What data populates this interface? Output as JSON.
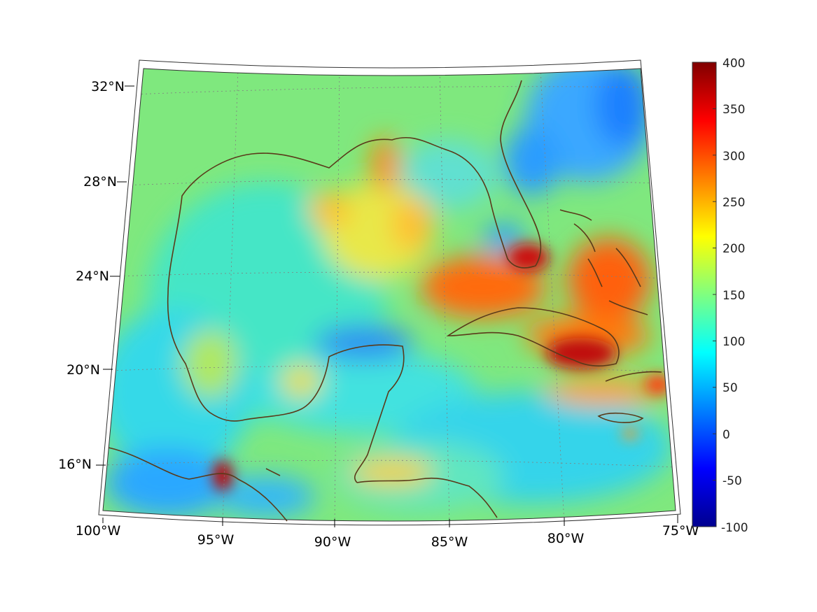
{
  "map": {
    "lat_labels": [
      "32°N",
      "28°N",
      "24°N",
      "20°N",
      "16°N"
    ],
    "lon_labels": [
      "100°W",
      "95°W",
      "90°W",
      "85°W",
      "80°W",
      "75°W"
    ],
    "colorbar": {
      "ticks": [
        "400",
        "350",
        "300",
        "250",
        "200",
        "150",
        "100",
        "50",
        "0",
        "-50",
        "-100"
      ],
      "min": -100,
      "max": 400,
      "colormap": "jet"
    },
    "colors": {
      "coastline": "#5a3a1a",
      "grid": "#888888",
      "background_field": "#8ee870"
    }
  }
}
